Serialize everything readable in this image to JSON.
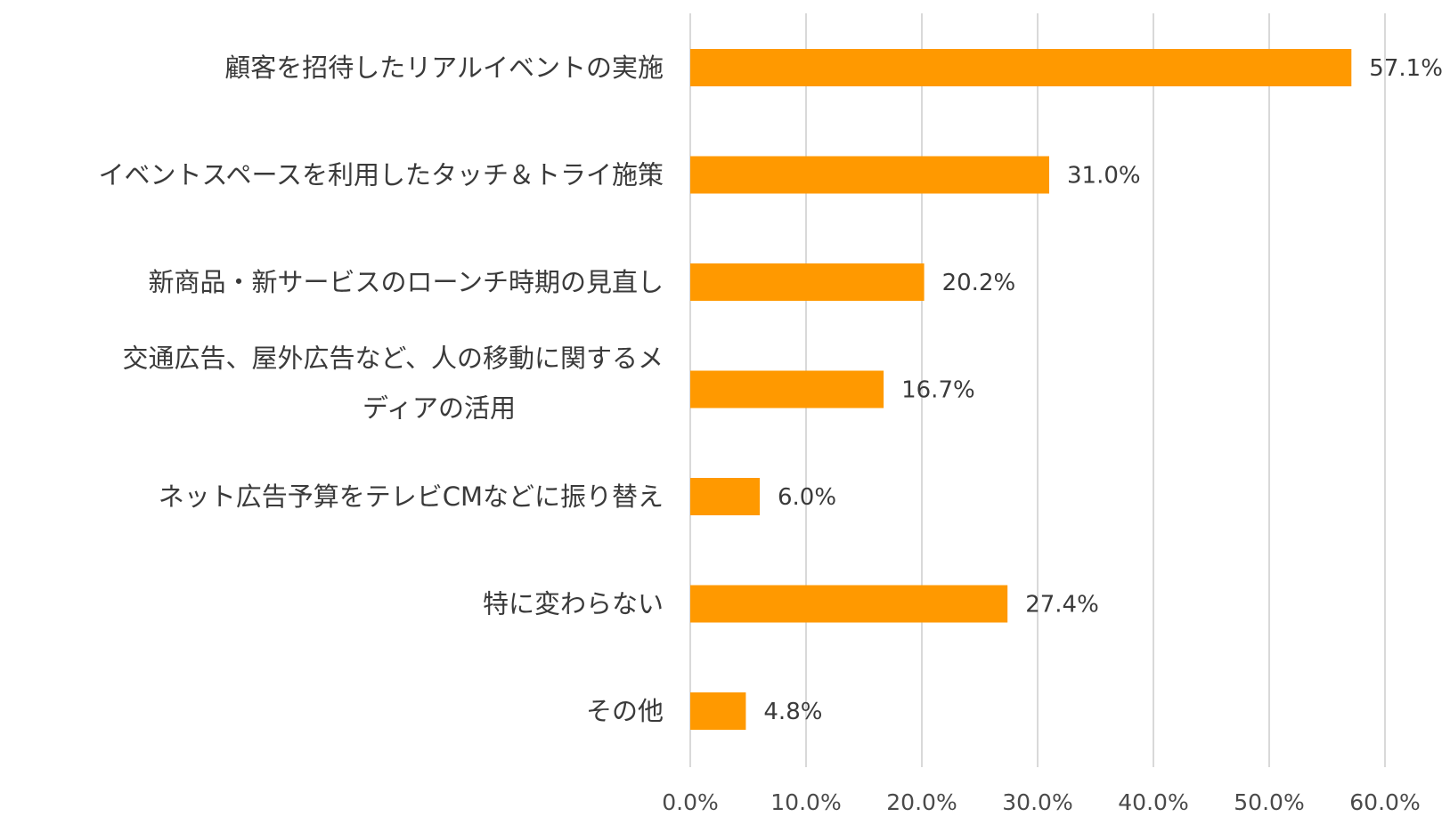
{
  "chart_data": {
    "type": "bar",
    "orientation": "horizontal",
    "categories": [
      "顧客を招待したリアルイベントの実施",
      "イベントスペースを利用したタッチ＆トライ施策",
      "新商品・新サービスのローンチ時期の見直し",
      [
        "交通広告、屋外広告など、人の移動に関するメ",
        "ディアの活用"
      ],
      "ネット広告予算をテレビCMなどに振り替え",
      "特に変わらない",
      "その他"
    ],
    "values": [
      57.1,
      31.0,
      20.2,
      16.7,
      6.0,
      27.4,
      4.8
    ],
    "value_labels": [
      "57.1%",
      "31.0%",
      "20.2%",
      "16.7%",
      "6.0%",
      "27.4%",
      "4.8%"
    ],
    "xlim": [
      0,
      60
    ],
    "ticks": [
      0,
      10,
      20,
      30,
      40,
      50,
      60
    ],
    "tick_labels": [
      "0.0%",
      "10.0%",
      "20.0%",
      "30.0%",
      "40.0%",
      "50.0%",
      "60.0%"
    ],
    "title": "",
    "xlabel": "",
    "ylabel": "",
    "grid": true,
    "legend": "none",
    "bar_color": "#FF9900"
  }
}
